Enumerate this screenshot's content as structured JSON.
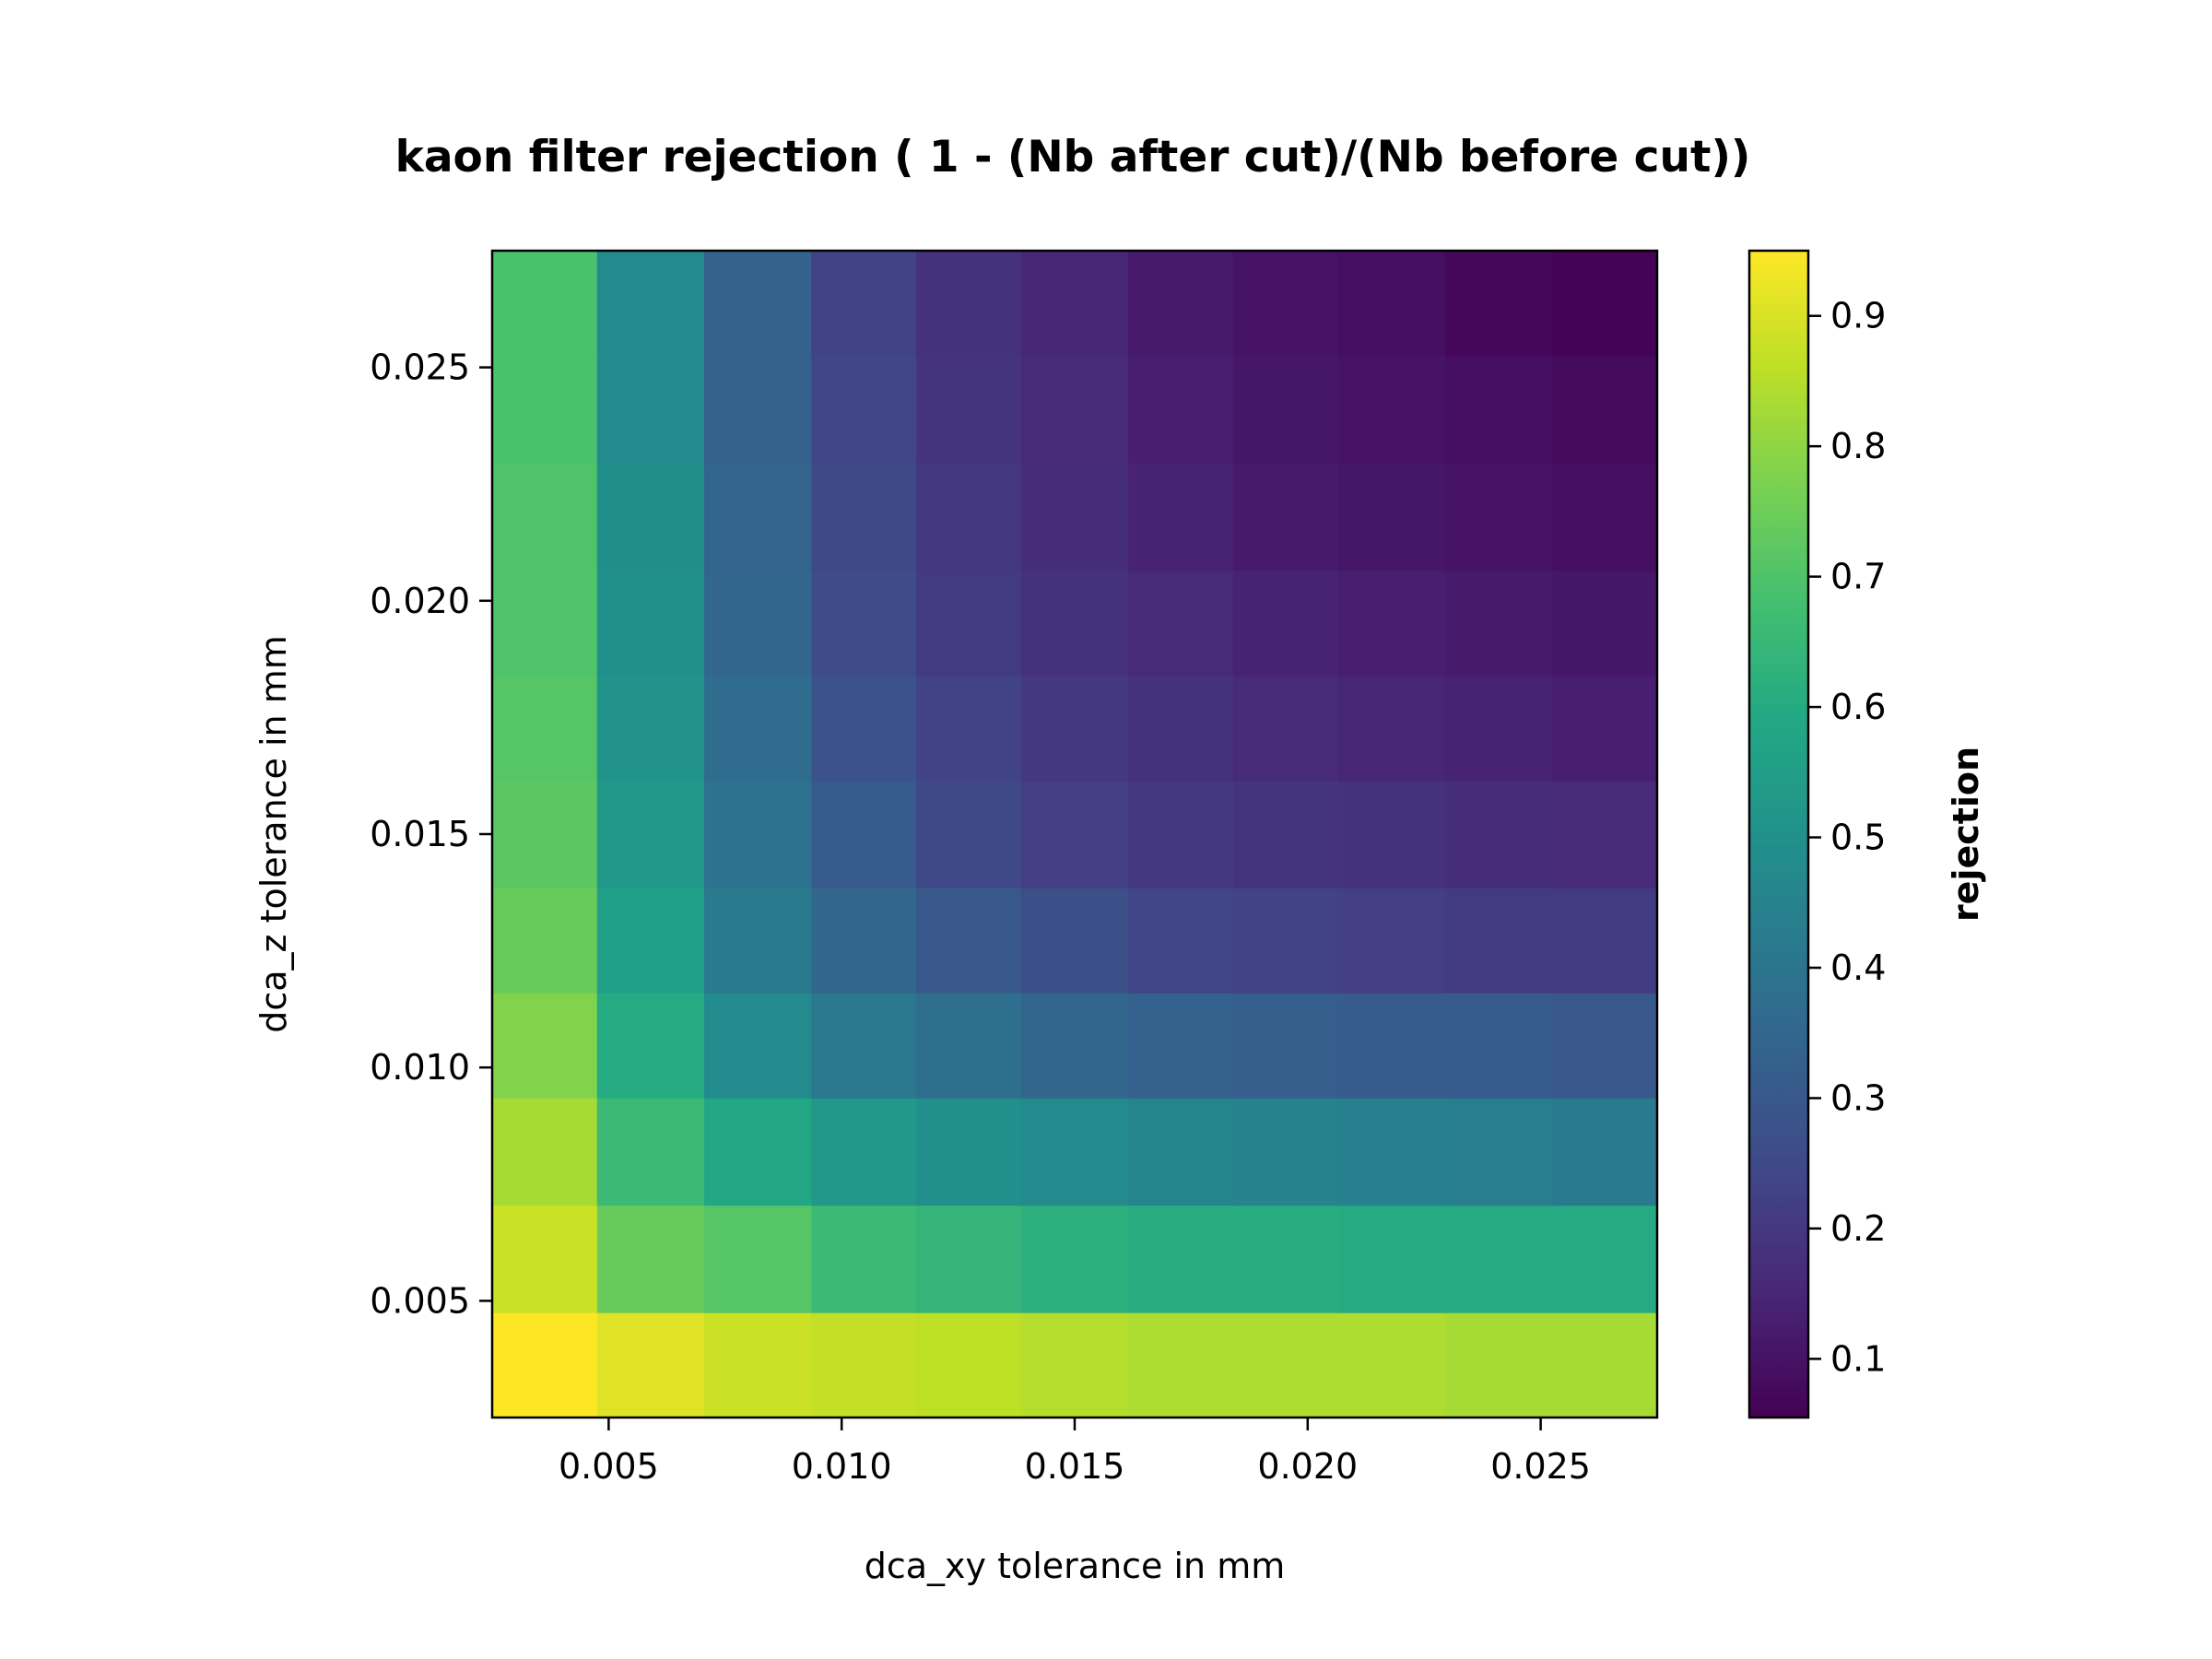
{
  "chart_data": {
    "type": "heatmap",
    "title": "kaon filter rejection ( 1 - (Nb after cut)/(Nb before cut))",
    "xlabel": "dca_xy tolerance in mm",
    "ylabel": "dca_z tolerance in mm",
    "colorbar_label": "rejection",
    "colormap": "viridis",
    "x": [
      0.0036,
      0.0059,
      0.0082,
      0.0105,
      0.0127,
      0.015,
      0.0173,
      0.0195,
      0.0218,
      0.0241,
      0.0264
    ],
    "y": [
      0.0036,
      0.0059,
      0.0082,
      0.0105,
      0.0127,
      0.015,
      0.0173,
      0.0195,
      0.0218,
      0.0241,
      0.0264
    ],
    "xlim": [
      0.0025,
      0.0275
    ],
    "ylim": [
      0.0025,
      0.0275
    ],
    "xticks": [
      "0.005",
      "0.010",
      "0.015",
      "0.020",
      "0.025"
    ],
    "yticks": [
      "0.005",
      "0.010",
      "0.015",
      "0.020",
      "0.025"
    ],
    "xtick_values": [
      0.005,
      0.01,
      0.015,
      0.02,
      0.025
    ],
    "ytick_values": [
      0.005,
      0.01,
      0.015,
      0.02,
      0.025
    ],
    "colorbar_range": [
      0.055,
      0.95
    ],
    "colorbar_ticks": [
      "0.1",
      "0.2",
      "0.3",
      "0.4",
      "0.5",
      "0.6",
      "0.7",
      "0.8",
      "0.9"
    ],
    "colorbar_tick_values": [
      0.1,
      0.2,
      0.3,
      0.4,
      0.5,
      0.6,
      0.7,
      0.8,
      0.9
    ],
    "values": [
      [
        0.95,
        0.91,
        0.88,
        0.87,
        0.86,
        0.85,
        0.84,
        0.84,
        0.84,
        0.83,
        0.83
      ],
      [
        0.88,
        0.74,
        0.71,
        0.66,
        0.64,
        0.62,
        0.61,
        0.61,
        0.6,
        0.6,
        0.6
      ],
      [
        0.83,
        0.66,
        0.59,
        0.53,
        0.5,
        0.48,
        0.46,
        0.45,
        0.44,
        0.43,
        0.42
      ],
      [
        0.78,
        0.6,
        0.48,
        0.41,
        0.38,
        0.35,
        0.33,
        0.32,
        0.31,
        0.31,
        0.3
      ],
      [
        0.74,
        0.56,
        0.42,
        0.35,
        0.3,
        0.27,
        0.24,
        0.23,
        0.22,
        0.21,
        0.21
      ],
      [
        0.72,
        0.53,
        0.39,
        0.31,
        0.25,
        0.22,
        0.2,
        0.19,
        0.18,
        0.17,
        0.16
      ],
      [
        0.71,
        0.51,
        0.37,
        0.28,
        0.23,
        0.2,
        0.18,
        0.16,
        0.15,
        0.14,
        0.13
      ],
      [
        0.7,
        0.5,
        0.35,
        0.26,
        0.21,
        0.18,
        0.16,
        0.14,
        0.13,
        0.12,
        0.11
      ],
      [
        0.7,
        0.49,
        0.34,
        0.25,
        0.2,
        0.17,
        0.14,
        0.12,
        0.11,
        0.1,
        0.09
      ],
      [
        0.69,
        0.48,
        0.33,
        0.24,
        0.19,
        0.16,
        0.13,
        0.11,
        0.1,
        0.09,
        0.08
      ],
      [
        0.69,
        0.48,
        0.33,
        0.23,
        0.18,
        0.15,
        0.12,
        0.1,
        0.09,
        0.07,
        0.06
      ]
    ],
    "grid": false,
    "legend": "none"
  }
}
